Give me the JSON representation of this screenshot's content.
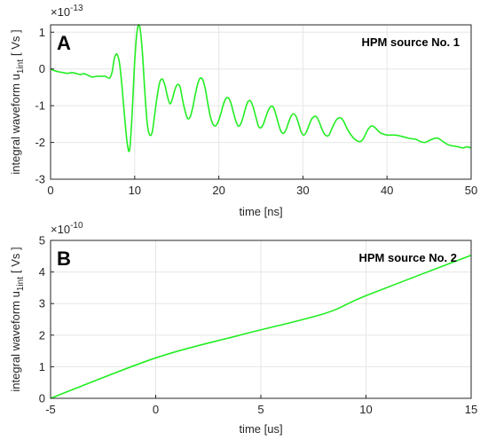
{
  "chart_data": [
    {
      "type": "line",
      "panel_label": "A",
      "annotation": "HPM source No. 1",
      "xlabel": "time [ns]",
      "ylabel_main": "integral waveform u",
      "ylabel_sub": "1int",
      "ylabel_unit": "[ Vs ]",
      "exponent_base": "×10",
      "exponent_power": "-13",
      "xlim": [
        0,
        50
      ],
      "ylim": [
        -3,
        1.2
      ],
      "xticks": [
        0,
        10,
        20,
        30,
        40,
        50
      ],
      "yticks": [
        -3,
        -2,
        -1,
        0,
        1
      ],
      "grid": true,
      "color": "#22ee22",
      "series": [
        {
          "x": [
            0,
            0.5,
            1,
            1.5,
            2,
            2.5,
            3,
            3.5,
            4,
            4.5,
            5,
            5.5,
            6,
            6.5,
            7,
            7.3,
            7.6,
            7.9,
            8.2,
            8.5,
            8.8,
            9.1,
            9.4,
            9.7,
            10,
            10.3,
            10.6,
            10.9,
            11.2,
            11.5,
            11.8,
            12.1,
            12.4,
            12.7,
            13,
            13.3,
            13.6,
            13.9,
            14.2,
            14.5,
            14.8,
            15.1,
            15.4,
            15.7,
            16,
            16.3,
            16.6,
            16.9,
            17.2,
            17.5,
            17.8,
            18.1,
            18.4,
            18.7,
            19,
            19.3,
            19.6,
            19.9,
            20.2,
            20.5,
            20.8,
            21.1,
            21.4,
            21.7,
            22,
            22.3,
            22.6,
            22.9,
            23.2,
            23.5,
            23.8,
            24.1,
            24.4,
            24.7,
            25,
            25.3,
            25.6,
            25.9,
            26.2,
            26.5,
            26.8,
            27.1,
            27.4,
            27.7,
            28,
            28.3,
            28.6,
            28.9,
            29.2,
            29.5,
            29.8,
            30.1,
            30.4,
            30.7,
            31,
            31.3,
            31.6,
            31.9,
            32.2,
            32.5,
            32.8,
            33.1,
            33.4,
            33.7,
            34,
            34.3,
            34.6,
            34.9,
            35.2,
            35.5,
            35.8,
            36.1,
            36.4,
            36.7,
            37,
            37.3,
            37.6,
            37.9,
            38.2,
            38.5,
            38.8,
            39.1,
            39.4,
            39.7,
            40,
            40.5,
            41,
            41.5,
            42,
            42.5,
            43,
            43.5,
            44,
            44.5,
            45,
            45.5,
            46,
            46.5,
            47,
            47.5,
            48,
            48.5,
            49,
            49.5,
            50
          ],
          "y": [
            0,
            -0.05,
            -0.08,
            -0.1,
            -0.12,
            -0.1,
            -0.12,
            -0.15,
            -0.13,
            -0.18,
            -0.22,
            -0.2,
            -0.2,
            -0.2,
            -0.25,
            -0.1,
            0.3,
            0.4,
            0.15,
            -0.5,
            -1.3,
            -2.0,
            -2.2,
            -1.2,
            0.2,
            1.05,
            1.15,
            0.5,
            -0.6,
            -1.5,
            -1.8,
            -1.7,
            -1.2,
            -0.7,
            -0.35,
            -0.28,
            -0.45,
            -0.75,
            -0.95,
            -0.8,
            -0.55,
            -0.42,
            -0.5,
            -0.85,
            -1.15,
            -1.35,
            -1.3,
            -1.05,
            -0.7,
            -0.4,
            -0.25,
            -0.3,
            -0.55,
            -0.95,
            -1.3,
            -1.5,
            -1.55,
            -1.45,
            -1.25,
            -1.0,
            -0.82,
            -0.78,
            -0.9,
            -1.15,
            -1.4,
            -1.55,
            -1.5,
            -1.3,
            -1.05,
            -0.88,
            -0.88,
            -1.05,
            -1.3,
            -1.55,
            -1.6,
            -1.5,
            -1.3,
            -1.12,
            -1.02,
            -1.05,
            -1.25,
            -1.5,
            -1.7,
            -1.75,
            -1.65,
            -1.45,
            -1.28,
            -1.22,
            -1.3,
            -1.5,
            -1.72,
            -1.8,
            -1.72,
            -1.55,
            -1.38,
            -1.3,
            -1.3,
            -1.42,
            -1.6,
            -1.75,
            -1.82,
            -1.8,
            -1.65,
            -1.5,
            -1.38,
            -1.33,
            -1.35,
            -1.45,
            -1.6,
            -1.72,
            -1.82,
            -1.9,
            -1.95,
            -1.98,
            -1.95,
            -1.85,
            -1.7,
            -1.6,
            -1.55,
            -1.58,
            -1.65,
            -1.72,
            -1.76,
            -1.78,
            -1.8,
            -1.8,
            -1.8,
            -1.82,
            -1.85,
            -1.88,
            -1.9,
            -1.92,
            -1.98,
            -2.0,
            -1.95,
            -1.9,
            -1.88,
            -1.95,
            -2.03,
            -2.08,
            -2.1,
            -2.12,
            -2.15,
            -2.12,
            -2.15
          ]
        }
      ]
    },
    {
      "type": "line",
      "panel_label": "B",
      "annotation": "HPM source No. 2",
      "xlabel": "time [us]",
      "ylabel_main": "integral waveform u",
      "ylabel_sub": "1int",
      "ylabel_unit": "[ Vs ]",
      "exponent_base": "×10",
      "exponent_power": "-10",
      "xlim": [
        -5,
        15
      ],
      "ylim": [
        0,
        5
      ],
      "xticks": [
        -5,
        0,
        5,
        10,
        15
      ],
      "yticks": [
        0,
        1,
        2,
        3,
        4,
        5
      ],
      "grid": true,
      "color": "#22ee22",
      "series": [
        {
          "x": [
            -5,
            0,
            4,
            8,
            10,
            15
          ],
          "y": [
            0.0,
            1.28,
            2.0,
            2.68,
            3.25,
            4.53
          ]
        }
      ]
    }
  ]
}
